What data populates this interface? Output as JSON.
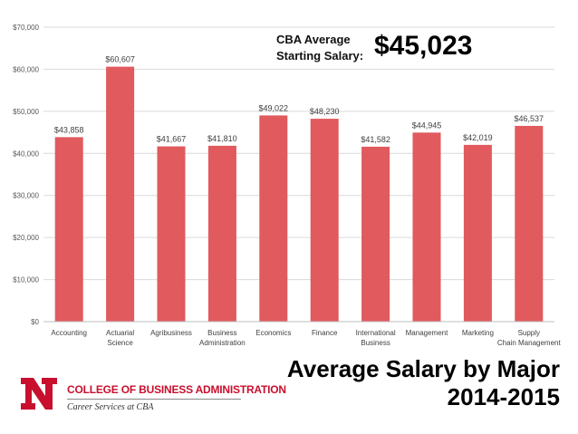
{
  "chart_data": {
    "type": "bar",
    "categories": [
      "Accounting",
      "Actuarial Science",
      "Agribusiness",
      "Business Administration",
      "Economics",
      "Finance",
      "International Business",
      "Management",
      "Marketing",
      "Supply Chain Management"
    ],
    "values": [
      43858,
      60607,
      41667,
      41810,
      49022,
      48230,
      41582,
      44945,
      42019,
      46537
    ],
    "data_labels": [
      "$43,858",
      "$60,607",
      "$41,667",
      "$41,810",
      "$49,022",
      "$48,230",
      "$41,582",
      "$44,945",
      "$42,019",
      "$46,537"
    ],
    "yticks": [
      0,
      10000,
      20000,
      30000,
      40000,
      50000,
      60000,
      70000
    ],
    "ytick_labels": [
      "$0",
      "$10,000",
      "$20,000",
      "$30,000",
      "$40,000",
      "$50,000",
      "$60,000",
      "$70,000"
    ],
    "ylim": [
      0,
      70000
    ],
    "grid": true,
    "bar_color": "#e05a5e",
    "title": "Average Salary by Major 2014-2015",
    "xlabel": "",
    "ylabel": ""
  },
  "annotation": {
    "label": "CBA Average\nStarting Salary:",
    "value": "$45,023"
  },
  "headline": {
    "line1": "Average Salary by Major",
    "line2": "2014-2015"
  },
  "logo": {
    "college": "COLLEGE OF BUSINESS ADMINISTRATION",
    "department": "Career Services at CBA",
    "color": "#c8102e"
  }
}
